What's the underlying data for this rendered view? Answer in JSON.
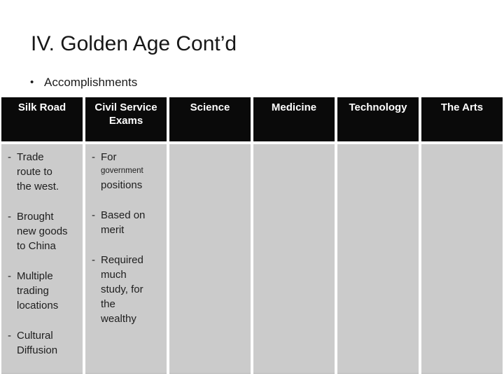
{
  "slide": {
    "title": "IV. Golden Age Cont’d",
    "bullet_char": "•",
    "subtitle": "Accomplishments"
  },
  "table": {
    "dash": "-",
    "headers": [
      "Silk Road",
      "Civil Service Exams",
      "Science",
      "Medicine",
      "Technology",
      "The Arts"
    ],
    "silk_road": {
      "items": [
        "Trade route to the west.",
        "Brought new goods to China",
        "Multiple trading locations",
        "Cultural Diffusion"
      ]
    },
    "civil_service": {
      "item1_line1": "For",
      "item1_line2": "government",
      "item1_line3": "positions",
      "item2": "Based on merit",
      "item3": "Required much study, for the wealthy"
    }
  },
  "colors": {
    "header_bg": "#0a0a0a",
    "header_text": "#ffffff",
    "cell_bg": "#cbcbcb",
    "body_text": "#1e1e1e",
    "background": "#ffffff"
  }
}
